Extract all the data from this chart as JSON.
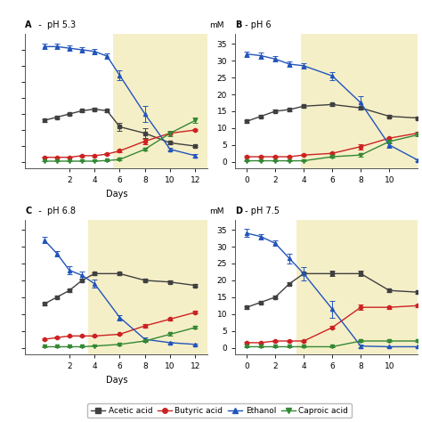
{
  "panels": [
    {
      "label": "A",
      "title": "A  -  pH 5.3",
      "has_yticks": false,
      "has_mM": false,
      "xlabel": "Days",
      "bg_start": 5.5,
      "bg_end": 13,
      "xlim": [
        -1.5,
        13
      ],
      "ylim": [
        -2,
        40
      ],
      "yticks": [
        0,
        5,
        10,
        15,
        20,
        25,
        30,
        35
      ],
      "xticks": [
        2,
        4,
        6,
        8,
        10,
        12
      ],
      "series": {
        "acetic": {
          "x": [
            0,
            1,
            2,
            3,
            4,
            5,
            6,
            8,
            10,
            12
          ],
          "y": [
            13,
            14,
            15,
            16,
            16.5,
            16,
            11,
            9,
            6,
            5
          ],
          "yerr": [
            0.4,
            0.4,
            0.4,
            0.4,
            0.4,
            0.4,
            1.2,
            1.5,
            0.4,
            0.4
          ]
        },
        "butyric": {
          "x": [
            0,
            1,
            2,
            3,
            4,
            5,
            6,
            8,
            10,
            12
          ],
          "y": [
            1.5,
            1.5,
            1.5,
            2,
            2,
            2.5,
            3.5,
            6.5,
            9,
            10
          ],
          "yerr": [
            0.2,
            0.2,
            0.2,
            0.2,
            0.2,
            0.2,
            0.5,
            0.8,
            0.4,
            0.4
          ]
        },
        "ethanol": {
          "x": [
            0,
            1,
            2,
            3,
            4,
            5,
            6,
            8,
            10,
            12
          ],
          "y": [
            36,
            36,
            35.5,
            35,
            34.5,
            33,
            27,
            15,
            4,
            2
          ],
          "yerr": [
            0.8,
            0.8,
            0.8,
            0.8,
            0.8,
            0.8,
            1.5,
            2.5,
            0.5,
            0.5
          ]
        },
        "caproic": {
          "x": [
            0,
            1,
            2,
            3,
            4,
            5,
            6,
            8,
            10,
            12
          ],
          "y": [
            0.3,
            0.3,
            0.3,
            0.3,
            0.3,
            0.5,
            0.8,
            4,
            9,
            13
          ],
          "yerr": [
            0.1,
            0.1,
            0.1,
            0.1,
            0.1,
            0.1,
            0.2,
            0.5,
            0.8,
            0.8
          ]
        }
      }
    },
    {
      "label": "B",
      "title": "B - pH 6",
      "has_yticks": true,
      "has_mM": true,
      "xlabel": "",
      "bg_start": 3.8,
      "bg_end": 12,
      "xlim": [
        -0.8,
        12
      ],
      "ylim": [
        -2,
        38
      ],
      "yticks": [
        0,
        5,
        10,
        15,
        20,
        25,
        30,
        35
      ],
      "xticks": [
        0,
        2,
        4,
        6,
        8,
        10
      ],
      "series": {
        "acetic": {
          "x": [
            0,
            1,
            2,
            3,
            4,
            6,
            8,
            10,
            12
          ],
          "y": [
            12,
            13.5,
            15,
            15.5,
            16.5,
            17,
            16,
            13.5,
            13
          ],
          "yerr": [
            0.4,
            0.4,
            0.4,
            0.4,
            0.4,
            0.4,
            0.4,
            0.4,
            0.4
          ]
        },
        "butyric": {
          "x": [
            0,
            1,
            2,
            3,
            4,
            6,
            8,
            10,
            12
          ],
          "y": [
            1.5,
            1.5,
            1.5,
            1.5,
            2,
            2.5,
            4.5,
            7,
            8.5
          ],
          "yerr": [
            0.2,
            0.2,
            0.2,
            0.2,
            0.2,
            0.2,
            0.8,
            0.4,
            0.4
          ]
        },
        "ethanol": {
          "x": [
            0,
            1,
            2,
            3,
            4,
            6,
            8,
            10,
            12
          ],
          "y": [
            32,
            31.5,
            30.5,
            29,
            28.5,
            25.5,
            17.5,
            5,
            0.5
          ],
          "yerr": [
            0.8,
            0.8,
            0.8,
            0.8,
            0.8,
            1.2,
            2,
            0.8,
            0.3
          ]
        },
        "caproic": {
          "x": [
            0,
            1,
            2,
            3,
            4,
            6,
            8,
            10,
            12
          ],
          "y": [
            0.3,
            0.3,
            0.3,
            0.3,
            0.3,
            1.5,
            2,
            6,
            8
          ],
          "yerr": [
            0.1,
            0.1,
            0.1,
            0.1,
            0.1,
            0.3,
            0.4,
            0.4,
            0.4
          ]
        }
      }
    },
    {
      "label": "C",
      "title": "C  -  pH 6.8",
      "has_yticks": false,
      "has_mM": false,
      "xlabel": "Days",
      "bg_start": 3.5,
      "bg_end": 13,
      "xlim": [
        -1.5,
        13
      ],
      "ylim": [
        -2,
        38
      ],
      "yticks": [
        0,
        5,
        10,
        15,
        20,
        25,
        30,
        35
      ],
      "xticks": [
        2,
        4,
        6,
        8,
        10,
        12
      ],
      "series": {
        "acetic": {
          "x": [
            0,
            1,
            2,
            3,
            4,
            6,
            8,
            10,
            12
          ],
          "y": [
            13,
            15,
            17,
            20,
            22,
            22,
            20,
            19.5,
            18.5
          ],
          "yerr": [
            0.4,
            0.4,
            0.4,
            0.4,
            0.4,
            0.4,
            0.4,
            0.4,
            0.4
          ]
        },
        "butyric": {
          "x": [
            0,
            1,
            2,
            3,
            4,
            6,
            8,
            10,
            12
          ],
          "y": [
            2.5,
            3,
            3.5,
            3.5,
            3.5,
            4,
            6.5,
            8.5,
            10.5
          ],
          "yerr": [
            0.2,
            0.2,
            0.2,
            0.2,
            0.2,
            0.2,
            0.4,
            0.4,
            0.4
          ]
        },
        "ethanol": {
          "x": [
            0,
            1,
            2,
            3,
            4,
            6,
            8,
            10,
            12
          ],
          "y": [
            32,
            28,
            23,
            21.5,
            19,
            9,
            2.5,
            1.5,
            1
          ],
          "yerr": [
            0.8,
            0.8,
            1.2,
            1.2,
            1.2,
            0.8,
            0.5,
            0.3,
            0.3
          ]
        },
        "caproic": {
          "x": [
            0,
            1,
            2,
            3,
            4,
            6,
            8,
            10,
            12
          ],
          "y": [
            0.3,
            0.3,
            0.3,
            0.3,
            0.5,
            1,
            2,
            4,
            6
          ],
          "yerr": [
            0.1,
            0.1,
            0.1,
            0.1,
            0.1,
            0.2,
            0.3,
            0.4,
            0.4
          ]
        }
      }
    },
    {
      "label": "D",
      "title": "D - pH 7.5",
      "has_yticks": true,
      "has_mM": true,
      "xlabel": "",
      "bg_start": 3.5,
      "bg_end": 12,
      "xlim": [
        -0.8,
        12
      ],
      "ylim": [
        -2,
        38
      ],
      "yticks": [
        0,
        5,
        10,
        15,
        20,
        25,
        30,
        35
      ],
      "xticks": [
        0,
        2,
        4,
        6,
        8,
        10
      ],
      "series": {
        "acetic": {
          "x": [
            0,
            1,
            2,
            3,
            4,
            6,
            8,
            10,
            12
          ],
          "y": [
            12,
            13.5,
            15,
            19,
            22,
            22,
            22,
            17,
            16.5
          ],
          "yerr": [
            0.4,
            0.4,
            0.4,
            0.4,
            0.4,
            0.8,
            0.8,
            0.4,
            0.4
          ]
        },
        "butyric": {
          "x": [
            0,
            1,
            2,
            3,
            4,
            6,
            8,
            10,
            12
          ],
          "y": [
            1.5,
            1.5,
            2,
            2,
            2,
            6,
            12,
            12,
            12.5
          ],
          "yerr": [
            0.2,
            0.2,
            0.2,
            0.2,
            0.2,
            0.4,
            0.8,
            0.4,
            0.4
          ]
        },
        "ethanol": {
          "x": [
            0,
            1,
            2,
            3,
            4,
            6,
            8,
            10,
            12
          ],
          "y": [
            34,
            33,
            31,
            26.5,
            22,
            11.5,
            0.5,
            0.3,
            0.3
          ],
          "yerr": [
            1.2,
            0.8,
            0.8,
            1.5,
            2,
            2.5,
            0.5,
            0.2,
            0.2
          ]
        },
        "caproic": {
          "x": [
            0,
            1,
            2,
            3,
            4,
            6,
            8,
            10,
            12
          ],
          "y": [
            0.3,
            0.3,
            0.3,
            0.3,
            0.3,
            0.3,
            2,
            2,
            2
          ],
          "yerr": [
            0.1,
            0.1,
            0.1,
            0.1,
            0.1,
            0.1,
            0.3,
            0.3,
            0.3
          ]
        }
      }
    }
  ],
  "colors": {
    "acetic": "#404040",
    "butyric": "#cc2222",
    "ethanol": "#2255bb",
    "caproic": "#338833"
  },
  "markers": {
    "acetic": "s",
    "butyric": "o",
    "ethanol": "^",
    "caproic": "v"
  },
  "bg_color": "#f5efc8",
  "fig_bg": "#ffffff",
  "legend_labels": [
    "Acetic acid",
    "Butyric acid",
    "Ethanol",
    "Caproic acid"
  ]
}
